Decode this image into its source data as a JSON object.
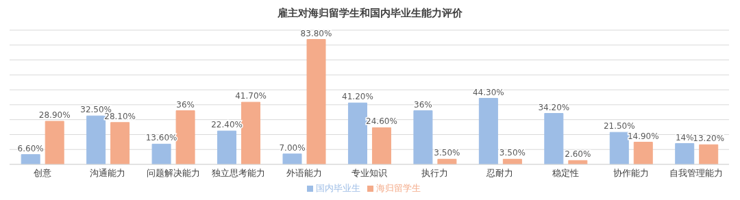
{
  "chart_data": {
    "type": "bar",
    "title": "雇主对海归留学生和国内毕业生能力评价",
    "categories": [
      "创意",
      "沟通能力",
      "问题解决能力",
      "独立思考能力",
      "外语能力",
      "专业知识",
      "执行力",
      "忍耐力",
      "稳定性",
      "协作能力",
      "自我管理能力"
    ],
    "series": [
      {
        "name": "国内毕业生",
        "color": "#9dbde6",
        "values": [
          6.6,
          32.5,
          13.6,
          22.4,
          7.0,
          41.2,
          36,
          44.3,
          34.2,
          21.5,
          14
        ],
        "value_labels": [
          "6.60%",
          "32.50%",
          "13.60%",
          "22.40%",
          "7.00%",
          "41.20%",
          "36%",
          "44.30%",
          "34.20%",
          "21.50%",
          "14%"
        ]
      },
      {
        "name": "海归留学生",
        "color": "#f4ab8a",
        "values": [
          28.9,
          28.1,
          36,
          41.7,
          83.8,
          24.6,
          3.5,
          3.5,
          2.6,
          14.9,
          13.2
        ],
        "value_labels": [
          "28.90%",
          "28.10%",
          "36%",
          "41.70%",
          "83.80%",
          "24.60%",
          "3.50%",
          "3.50%",
          "2.60%",
          "14.90%",
          "13.20%"
        ]
      }
    ],
    "ylim": [
      0,
      90
    ],
    "tick_labels": "x",
    "grid": "y",
    "legend": "bottom"
  }
}
